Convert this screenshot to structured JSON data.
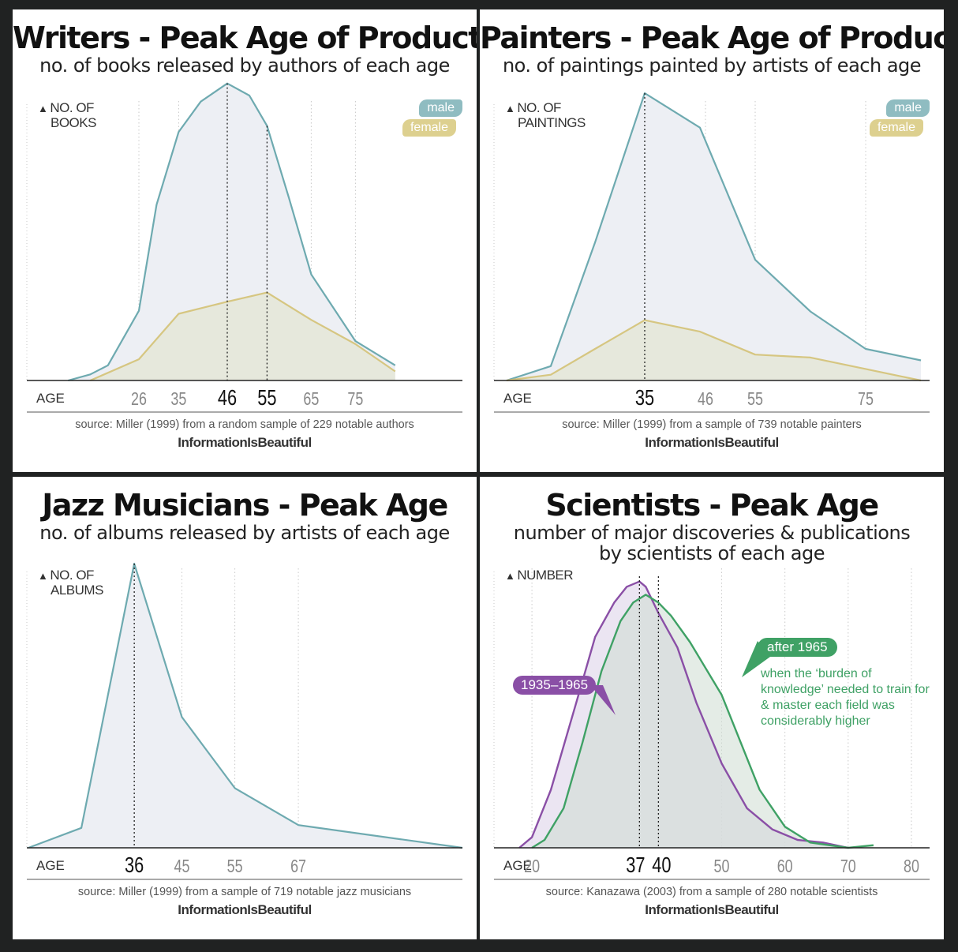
{
  "panels": [
    {
      "title": "Writers - Peak Age of Production",
      "subtitle": "no. of books released by authors of each age",
      "ylabel_line1": "NO. OF",
      "ylabel_line2": "BOOKS",
      "xlabel": "AGE",
      "source": "source: Miller (1999) from a random sample of 229 notable authors",
      "brand": "InformationIsBeautiful",
      "legend": [
        "male",
        "female"
      ]
    },
    {
      "title": "Painters - Peak Age of Production",
      "subtitle": "no. of paintings painted by artists of each age",
      "ylabel_line1": "NO. OF",
      "ylabel_line2": "PAINTINGS",
      "xlabel": "AGE",
      "source": "source: Miller (1999) from a sample of 739 notable painters",
      "brand": "InformationIsBeautiful",
      "legend": [
        "male",
        "female"
      ]
    },
    {
      "title": "Jazz Musicians - Peak Age",
      "subtitle": "no. of albums released by artists of each age",
      "ylabel_line1": "NO. OF",
      "ylabel_line2": "ALBUMS",
      "xlabel": "AGE",
      "source": "source: Miller (1999) from a sample of 719 notable jazz musicians",
      "brand": "InformationIsBeautiful"
    },
    {
      "title": "Scientists - Peak Age",
      "subtitle": "number of major discoveries & publications by scientists of each age",
      "ylabel_line1": "NUMBER",
      "ylabel_line2": "",
      "xlabel": "AGE",
      "source": "source: Kanazawa (2003) from a sample of 280 notable scientists",
      "brand": "InformationIsBeautiful",
      "callout_early": "1935–1965",
      "callout_late": "after 1965",
      "annotation": "when the ‘burden of knowledge’ needed to train for & master each field was considerably higher"
    }
  ],
  "colors": {
    "male": "#6eaab0",
    "female": "#d6c681",
    "early": "#8a4fa6",
    "late": "#3fa165",
    "fill": "#edeff4"
  },
  "chart_data": [
    {
      "type": "area",
      "title": "Writers - Peak Age of Production",
      "xlabel": "AGE",
      "ylabel": "NO. OF BOOKS",
      "xlim": [
        6,
        96
      ],
      "ylim": [
        0,
        100
      ],
      "ticks": [
        26,
        35,
        46,
        55,
        65,
        75
      ],
      "highlight_ticks": [
        46,
        55
      ],
      "series": [
        {
          "name": "male",
          "x": [
            10,
            15,
            19,
            26,
            30,
            35,
            40,
            46,
            51,
            55,
            60,
            65,
            75,
            84
          ],
          "y": [
            0,
            2,
            5,
            23,
            58,
            82,
            92,
            98,
            94,
            84,
            60,
            35,
            13,
            5
          ]
        },
        {
          "name": "female",
          "x": [
            15,
            26,
            35,
            46,
            55,
            65,
            75,
            84
          ],
          "y": [
            0,
            7,
            22,
            26,
            29,
            20,
            12,
            3
          ]
        }
      ]
    },
    {
      "type": "area",
      "title": "Painters - Peak Age of Production",
      "xlabel": "AGE",
      "ylabel": "NO. OF PAINTINGS",
      "xlim": [
        8,
        86
      ],
      "ylim": [
        0,
        100
      ],
      "ticks": [
        35,
        46,
        55,
        75
      ],
      "highlight_ticks": [
        35
      ],
      "series": [
        {
          "name": "male",
          "x": [
            10,
            18,
            26,
            35,
            45,
            55,
            65,
            75,
            85
          ],
          "y": [
            0,
            5,
            48,
            100,
            88,
            42,
            24,
            11,
            7
          ]
        },
        {
          "name": "female",
          "x": [
            10,
            18,
            26,
            35,
            45,
            55,
            65,
            75,
            85
          ],
          "y": [
            0,
            2,
            11,
            21,
            17,
            9,
            8,
            4,
            0
          ]
        }
      ]
    },
    {
      "type": "area",
      "title": "Jazz Musicians - Peak Age",
      "xlabel": "AGE",
      "ylabel": "NO. OF ALBUMS",
      "xlim": [
        16,
        98
      ],
      "ylim": [
        0,
        100
      ],
      "ticks": [
        36,
        45,
        55,
        67
      ],
      "highlight_ticks": [
        36
      ],
      "series": [
        {
          "name": "",
          "x": [
            16,
            26,
            36,
            45,
            55,
            67,
            98
          ],
          "y": [
            0,
            7,
            100,
            46,
            21,
            8,
            0
          ]
        }
      ]
    },
    {
      "type": "area",
      "title": "Scientists - Peak Age",
      "xlabel": "AGE",
      "ylabel": "NUMBER",
      "xlim": [
        14,
        83
      ],
      "ylim": [
        0,
        100
      ],
      "ticks": [
        20,
        37,
        40,
        50,
        60,
        70,
        80
      ],
      "highlight_ticks": [
        37,
        40
      ],
      "series": [
        {
          "name": "1935–1965",
          "x": [
            18,
            20,
            23,
            27,
            30,
            33,
            35,
            37,
            38,
            40,
            43,
            46,
            50,
            54,
            58,
            62,
            66,
            70
          ],
          "y": [
            0,
            4,
            22,
            55,
            80,
            93,
            99,
            101,
            99,
            89,
            76,
            55,
            32,
            15,
            7,
            3,
            2,
            0
          ]
        },
        {
          "name": "after 1965",
          "x": [
            20,
            22,
            25,
            28,
            31,
            34,
            36,
            38,
            40,
            42,
            45,
            48,
            50,
            53,
            56,
            60,
            64,
            67,
            70,
            74
          ],
          "y": [
            0,
            3,
            15,
            40,
            67,
            86,
            93,
            96,
            93,
            88,
            78,
            66,
            58,
            40,
            22,
            8,
            2,
            1,
            0,
            1
          ]
        }
      ]
    }
  ]
}
